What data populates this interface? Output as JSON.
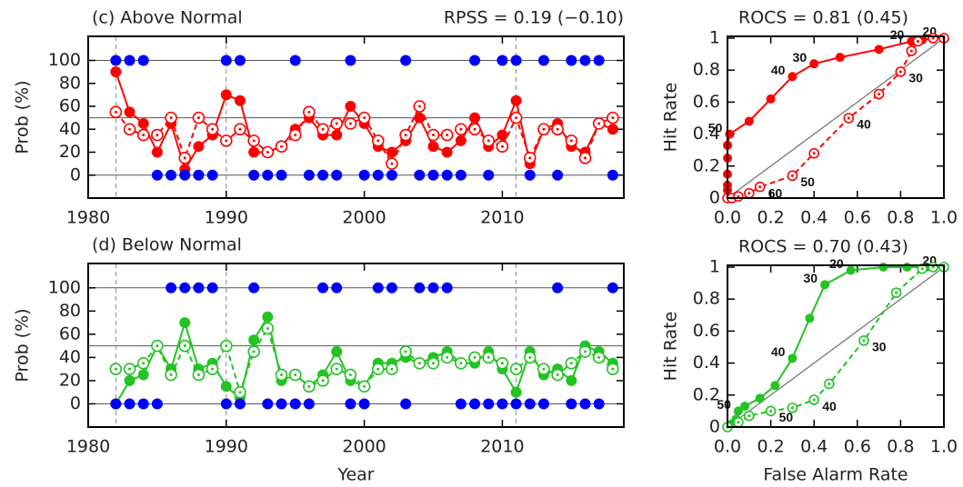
{
  "chart_data": [
    {
      "type": "line",
      "title": "(c) Above Normal",
      "subtitle": "RPSS = 0.19 (−0.10)",
      "ylabel": "Prob (%)",
      "x": [
        1982,
        1983,
        1984,
        1985,
        1986,
        1987,
        1988,
        1989,
        1990,
        1991,
        1992,
        1993,
        1994,
        1995,
        1996,
        1997,
        1998,
        1999,
        2000,
        2001,
        2002,
        2003,
        2004,
        2005,
        2006,
        2007,
        2008,
        2009,
        2010,
        2011,
        2012,
        2013,
        2014,
        2015,
        2016,
        2017,
        2018
      ],
      "series": [
        {
          "color": "#ff0000",
          "style": "solid",
          "marker": "filled",
          "values": [
            90,
            55,
            45,
            20,
            45,
            5,
            25,
            35,
            70,
            65,
            20,
            20,
            25,
            40,
            50,
            35,
            35,
            60,
            45,
            25,
            20,
            30,
            50,
            25,
            20,
            30,
            50,
            25,
            35,
            65,
            10,
            40,
            45,
            25,
            20,
            45,
            40
          ]
        },
        {
          "color": "#ff0000",
          "style": "dashed",
          "marker": "open",
          "values": [
            55,
            40,
            35,
            35,
            50,
            15,
            50,
            40,
            30,
            40,
            30,
            20,
            25,
            35,
            55,
            40,
            45,
            45,
            50,
            30,
            10,
            35,
            60,
            35,
            35,
            40,
            40,
            30,
            25,
            50,
            15,
            40,
            40,
            30,
            15,
            45,
            50
          ]
        },
        {
          "color": "#0000ff",
          "style": "none",
          "marker": "filled",
          "values": [
            100,
            100,
            100,
            0,
            0,
            0,
            0,
            0,
            100,
            100,
            0,
            0,
            0,
            100,
            0,
            0,
            0,
            100,
            0,
            0,
            0,
            100,
            0,
            0,
            0,
            0,
            100,
            0,
            100,
            100,
            0,
            100,
            0,
            100,
            100,
            100,
            0
          ]
        }
      ],
      "xlim": [
        1980,
        2018.8
      ],
      "xticks": [
        1980,
        1990,
        2000,
        2010
      ],
      "ylim": [
        -20,
        121
      ],
      "yticks": [
        0,
        20,
        40,
        60,
        80,
        100
      ],
      "hlines": [
        0,
        50,
        100
      ],
      "vlines": [
        1982,
        1990,
        2011
      ]
    },
    {
      "type": "line",
      "title": "(d) Below Normal",
      "xlabel": "Year",
      "ylabel": "Prob (%)",
      "x": [
        1982,
        1983,
        1984,
        1985,
        1986,
        1987,
        1988,
        1989,
        1990,
        1991,
        1992,
        1993,
        1994,
        1995,
        1996,
        1997,
        1998,
        1999,
        2000,
        2001,
        2002,
        2003,
        2004,
        2005,
        2006,
        2007,
        2008,
        2009,
        2010,
        2011,
        2012,
        2013,
        2014,
        2015,
        2016,
        2017,
        2018
      ],
      "series": [
        {
          "color": "#22c322",
          "style": "solid",
          "marker": "filled",
          "values": [
            0,
            20,
            25,
            50,
            30,
            70,
            30,
            35,
            15,
            5,
            55,
            75,
            20,
            25,
            15,
            25,
            45,
            20,
            15,
            35,
            35,
            40,
            35,
            40,
            45,
            35,
            35,
            45,
            30,
            10,
            45,
            25,
            30,
            20,
            50,
            45,
            35
          ]
        },
        {
          "color": "#22c322",
          "style": "dashed",
          "marker": "open",
          "values": [
            30,
            30,
            35,
            50,
            25,
            50,
            25,
            30,
            50,
            10,
            45,
            65,
            25,
            25,
            15,
            20,
            30,
            25,
            15,
            30,
            30,
            45,
            35,
            35,
            40,
            35,
            40,
            40,
            35,
            30,
            40,
            30,
            25,
            35,
            45,
            40,
            30
          ]
        },
        {
          "color": "#0000ff",
          "style": "none",
          "marker": "filled",
          "values": [
            0,
            0,
            0,
            0,
            100,
            100,
            100,
            100,
            0,
            0,
            100,
            0,
            0,
            0,
            0,
            100,
            100,
            0,
            0,
            100,
            100,
            0,
            100,
            100,
            100,
            0,
            0,
            0,
            0,
            0,
            0,
            0,
            100,
            0,
            0,
            0,
            100
          ]
        }
      ],
      "xlim": [
        1980,
        2018.8
      ],
      "xticks": [
        1980,
        1990,
        2000,
        2010
      ],
      "ylim": [
        -20,
        121
      ],
      "yticks": [
        0,
        20,
        40,
        60,
        80,
        100
      ],
      "hlines": [
        0,
        50,
        100
      ],
      "vlines": [
        1982,
        1990,
        2011
      ]
    },
    {
      "type": "roc",
      "title": "ROCS = 0.81 (0.45)",
      "ylabel": "Hit Rate",
      "series": [
        {
          "color": "#ff0000",
          "style": "solid",
          "marker": "filled",
          "x": [
            0,
            0,
            0,
            0,
            0,
            0,
            0.01,
            0.1,
            0.2,
            0.3,
            0.4,
            0.52,
            0.7,
            0.85,
            0.9,
            0.95,
            1
          ],
          "values": [
            0,
            0.05,
            0.08,
            0.15,
            0.25,
            0.33,
            0.4,
            0.48,
            0.62,
            0.76,
            0.84,
            0.88,
            0.93,
            0.98,
            0.99,
            1,
            1
          ],
          "point_labels": [
            null,
            null,
            null,
            null,
            null,
            null,
            "50",
            null,
            null,
            "40",
            "30",
            null,
            null,
            "20",
            null,
            null,
            "20"
          ]
        },
        {
          "color": "#ff0000",
          "style": "dashed",
          "marker": "open",
          "x": [
            0,
            0.02,
            0.05,
            0.1,
            0.15,
            0.3,
            0.4,
            0.56,
            0.7,
            0.8,
            0.85,
            0.88,
            0.95,
            1
          ],
          "values": [
            0,
            0,
            0.01,
            0.03,
            0.07,
            0.14,
            0.28,
            0.5,
            0.65,
            0.79,
            0.92,
            0.98,
            1,
            1
          ],
          "point_labels": [
            null,
            null,
            null,
            null,
            "60",
            "50",
            null,
            "40",
            null,
            "30",
            null,
            null,
            null,
            null
          ]
        }
      ],
      "xlim": [
        0,
        1
      ],
      "xticks": [
        {
          "value": 0,
          "label": "0.0"
        },
        0.2,
        0.4,
        0.6,
        0.8,
        {
          "value": 1,
          "label": "1.0"
        }
      ],
      "ylim": [
        0,
        1
      ],
      "yticks": [
        0,
        0.2,
        0.4,
        0.6,
        0.8,
        1
      ],
      "diagonal": true
    },
    {
      "type": "roc",
      "title": "ROCS = 0.70 (0.43)",
      "xlabel": "False Alarm Rate",
      "ylabel": "Hit Rate",
      "series": [
        {
          "color": "#22c322",
          "style": "solid",
          "marker": "filled",
          "x": [
            0,
            0.02,
            0.04,
            0.05,
            0.08,
            0.15,
            0.22,
            0.3,
            0.38,
            0.45,
            0.57,
            0.72,
            0.83,
            0.92,
            1
          ],
          "values": [
            0,
            0.02,
            0.05,
            0.1,
            0.13,
            0.18,
            0.26,
            0.43,
            0.68,
            0.89,
            0.98,
            1,
            1,
            1,
            1
          ],
          "point_labels": [
            null,
            null,
            null,
            "50",
            null,
            null,
            null,
            "40",
            null,
            "30",
            "20",
            null,
            null,
            null,
            "20"
          ]
        },
        {
          "color": "#22c322",
          "style": "dashed",
          "marker": "open",
          "x": [
            0,
            0.05,
            0.1,
            0.2,
            0.3,
            0.4,
            0.47,
            0.63,
            0.78,
            0.9,
            0.95,
            1
          ],
          "values": [
            0,
            0.03,
            0.07,
            0.1,
            0.12,
            0.17,
            0.27,
            0.54,
            0.84,
            0.99,
            1,
            1
          ],
          "point_labels": [
            null,
            null,
            null,
            "50",
            null,
            "40",
            null,
            "30",
            null,
            null,
            null,
            null
          ]
        }
      ],
      "xlim": [
        0,
        1
      ],
      "xticks": [
        {
          "value": 0,
          "label": "0.0"
        },
        0.2,
        0.4,
        0.6,
        0.8,
        {
          "value": 1,
          "label": "1.0"
        }
      ],
      "ylim": [
        0,
        1
      ],
      "yticks": [
        0,
        0.2,
        0.4,
        0.6,
        0.8,
        1
      ],
      "diagonal": true
    }
  ]
}
